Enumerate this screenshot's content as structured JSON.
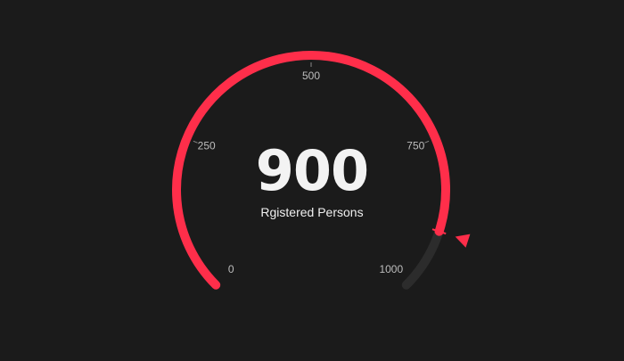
{
  "chart_data": {
    "type": "gauge",
    "value": 900,
    "display_value": "900",
    "label": "Rgistered Persons",
    "min": 0,
    "max": 1000,
    "ticks": [
      0,
      250,
      500,
      750,
      1000
    ],
    "colors": {
      "background": "#1b1b1b",
      "track": "#2c2c2c",
      "fill": "#ff2e4a",
      "text": "#f3f3f3",
      "tick_label": "#bdbdbd"
    }
  }
}
